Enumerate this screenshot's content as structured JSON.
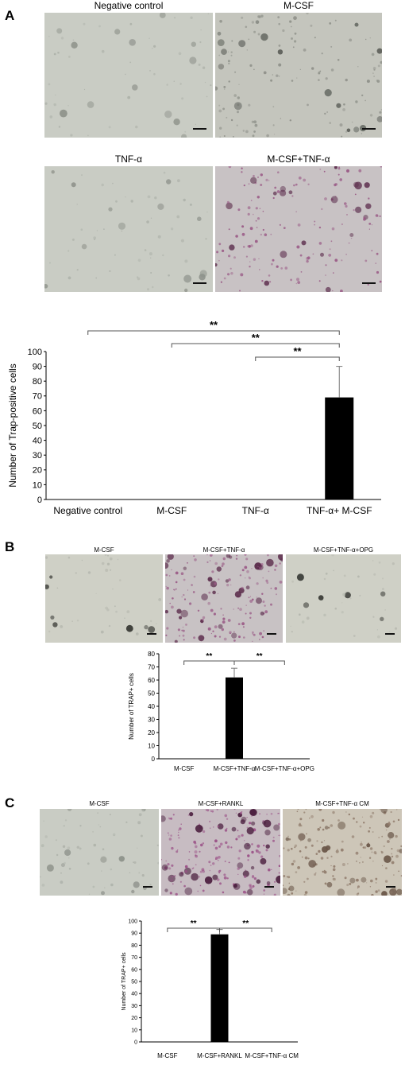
{
  "figure": {
    "panel_a": {
      "letter": "A",
      "micrographs": [
        {
          "caption": "Negative control",
          "style": "plain"
        },
        {
          "caption": "M-CSF",
          "style": "network"
        },
        {
          "caption": "TNF-α",
          "style": "plain"
        },
        {
          "caption": "M-CSF+TNF-α",
          "style": "stained"
        }
      ]
    },
    "panel_b": {
      "letter": "B",
      "micrographs": [
        {
          "caption": "M-CSF",
          "style": "sparse"
        },
        {
          "caption": "M-CSF+TNF-α",
          "style": "stained"
        },
        {
          "caption": "M-CSF+TNF-α+OPG",
          "style": "sparse"
        }
      ]
    },
    "panel_c": {
      "letter": "C",
      "micrographs": [
        {
          "caption": "M-CSF",
          "style": "plain"
        },
        {
          "caption": "M-CSF+RANKL",
          "style": "heavy"
        },
        {
          "caption": "M-CSF+TNF-α CM",
          "style": "dotted"
        }
      ]
    }
  },
  "chart_data": [
    {
      "type": "bar",
      "id": "A",
      "categories": [
        "Negative control",
        "M-CSF",
        "TNF-α",
        "TNF-α+ M-CSF"
      ],
      "values": [
        0,
        0,
        0,
        69
      ],
      "error": [
        0,
        0,
        0,
        21
      ],
      "ylabel": "Number of Trap-positive cells",
      "ylim": [
        0,
        100
      ],
      "yticks": [
        0,
        10,
        20,
        30,
        40,
        50,
        60,
        70,
        80,
        90,
        100
      ],
      "significance": [
        {
          "from": 0,
          "to": 3,
          "label": "**"
        },
        {
          "from": 1,
          "to": 3,
          "label": "**"
        },
        {
          "from": 2,
          "to": 3,
          "label": "**"
        }
      ],
      "bar_color": "#000000",
      "grid": false
    },
    {
      "type": "bar",
      "id": "B",
      "categories": [
        "M-CSF",
        "M-CSF+TNF-α",
        "M-CSF+TNF-α+OPG"
      ],
      "values": [
        0,
        62,
        0
      ],
      "error": [
        0,
        7,
        0
      ],
      "ylabel": "Number of TRAP+ cells",
      "ylim": [
        0,
        80
      ],
      "yticks": [
        0,
        10,
        20,
        30,
        40,
        50,
        60,
        70,
        80
      ],
      "significance": [
        {
          "from": 0,
          "to": 1,
          "label": "**"
        },
        {
          "from": 1,
          "to": 2,
          "label": "**"
        }
      ],
      "bar_color": "#000000",
      "grid": false
    },
    {
      "type": "bar",
      "id": "C",
      "categories": [
        "M-CSF",
        "M-CSF+RANKL",
        "M-CSF+TNF-α CM"
      ],
      "values": [
        0,
        89,
        0
      ],
      "error": [
        0,
        4,
        0
      ],
      "ylabel": "Number of TRAP+ cells",
      "ylim": [
        0,
        100
      ],
      "yticks": [
        0,
        10,
        20,
        30,
        40,
        50,
        60,
        70,
        80,
        90,
        100
      ],
      "significance": [
        {
          "from": 0,
          "to": 1,
          "label": "**"
        },
        {
          "from": 1,
          "to": 2,
          "label": "**"
        }
      ],
      "bar_color": "#000000",
      "grid": false
    }
  ]
}
